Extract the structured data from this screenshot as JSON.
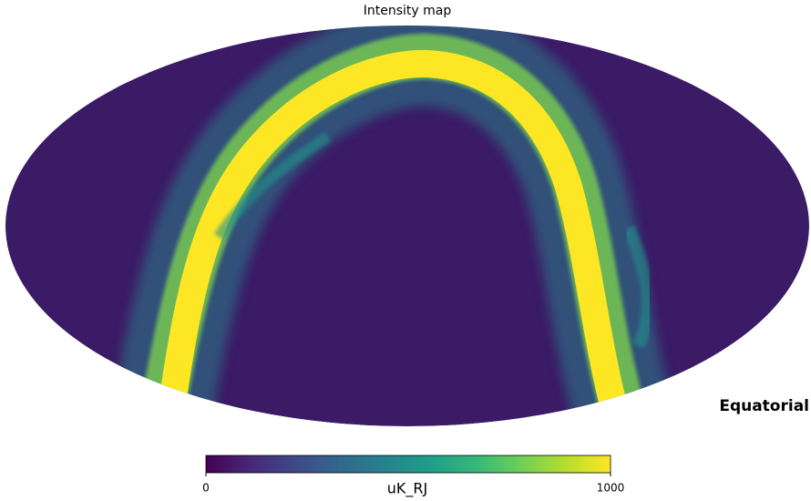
{
  "chart_data": {
    "type": "sky-map",
    "title": "Intensity map",
    "coord": "Equatorial",
    "colorbar": {
      "label": "uK_RJ",
      "lim": [
        0,
        1000
      ],
      "ticks": [
        0,
        1000
      ],
      "colormap": "viridis"
    }
  }
}
